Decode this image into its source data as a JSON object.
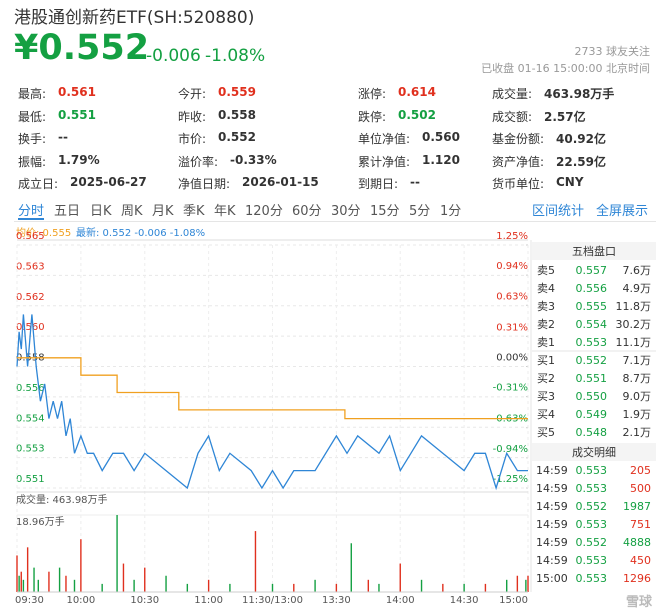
{
  "header": {
    "title": "港股通创新药ETF(SH:520880)",
    "price": "¥0.552",
    "change": "-0.006",
    "change_pct": "-1.08%",
    "followers": "2733 球友关注",
    "status": "已收盘 01-16 15:00:00 北京时间"
  },
  "stats": [
    [
      {
        "label": "最高:",
        "value": "0.561",
        "color": "#e0301e"
      },
      {
        "label": "今开:",
        "value": "0.559",
        "color": "#e0301e"
      },
      {
        "label": "涨停:",
        "value": "0.614",
        "color": "#e0301e"
      },
      {
        "label": "成交量:",
        "value": "463.98万手"
      }
    ],
    [
      {
        "label": "最低:",
        "value": "0.551",
        "color": "#14a042"
      },
      {
        "label": "昨收:",
        "value": "0.558"
      },
      {
        "label": "跌停:",
        "value": "0.502",
        "color": "#14a042"
      },
      {
        "label": "成交额:",
        "value": "2.57亿"
      }
    ],
    [
      {
        "label": "换手:",
        "value": "--"
      },
      {
        "label": "市价:",
        "value": "0.552"
      },
      {
        "label": "单位净值:",
        "value": "0.560"
      },
      {
        "label": "基金份额:",
        "value": "40.92亿"
      }
    ],
    [
      {
        "label": "振幅:",
        "value": "1.79%"
      },
      {
        "label": "溢价率:",
        "value": "-0.33%"
      },
      {
        "label": "累计净值:",
        "value": "1.120"
      },
      {
        "label": "资产净值:",
        "value": "22.59亿"
      }
    ],
    [
      {
        "label": "成立日:",
        "value": "2025-06-27"
      },
      {
        "label": "净值日期:",
        "value": "2026-01-15"
      },
      {
        "label": "到期日:",
        "value": "--"
      },
      {
        "label": "货币单位:",
        "value": "CNY"
      }
    ]
  ],
  "tabs": [
    "分时",
    "五日",
    "日K",
    "周K",
    "月K",
    "季K",
    "年K",
    "120分",
    "60分",
    "30分",
    "15分",
    "5分",
    "1分"
  ],
  "tab_actions": [
    "区间统计",
    "全屏展示"
  ],
  "legend": {
    "avg": "均价: 0.555",
    "latest": "最新: 0.552 -0.006 -1.08%"
  },
  "chart_data": {
    "type": "line",
    "xlim": [
      0,
      240
    ],
    "xticks": [
      {
        "value": 0,
        "label": "09:30"
      },
      {
        "value": 30,
        "label": "10:00"
      },
      {
        "value": 60,
        "label": "10:30"
      },
      {
        "value": 90,
        "label": "11:00"
      },
      {
        "value": 120,
        "label": "11:30/13:00"
      },
      {
        "value": 150,
        "label": "13:30"
      },
      {
        "value": 180,
        "label": "14:00"
      },
      {
        "value": 210,
        "label": "14:30"
      },
      {
        "value": 240,
        "label": "15:00"
      }
    ],
    "ylim": [
      0.551,
      0.565
    ],
    "yticks": [
      {
        "value": 0.565,
        "label": "0.565"
      },
      {
        "value": 0.56325,
        "label": "0.563"
      },
      {
        "value": 0.5615,
        "label": "0.562"
      },
      {
        "value": 0.55975,
        "label": "0.560"
      },
      {
        "value": 0.558,
        "label": "0.558"
      },
      {
        "value": 0.55625,
        "label": "0.556"
      },
      {
        "value": 0.5545,
        "label": "0.554"
      },
      {
        "value": 0.55275,
        "label": "0.553"
      },
      {
        "value": 0.551,
        "label": "0.551"
      }
    ],
    "y2lim": [
      -1.25,
      1.25
    ],
    "y2ticks": [
      {
        "value": 1.25,
        "label": "1.25%"
      },
      {
        "value": 0.94,
        "label": "0.94%"
      },
      {
        "value": 0.63,
        "label": "0.63%"
      },
      {
        "value": 0.31,
        "label": "0.31%"
      },
      {
        "value": 0,
        "label": "0.00%"
      },
      {
        "value": -0.31,
        "label": "-0.31%"
      },
      {
        "value": -0.63,
        "label": "-0.63%"
      },
      {
        "value": -0.94,
        "label": "-0.94%"
      },
      {
        "value": -1.25,
        "label": "-1.25%"
      }
    ],
    "y2colors": [
      "#e0301e",
      "#e0301e",
      "#e0301e",
      "#e0301e",
      "#333333",
      "#14a042",
      "#14a042",
      "#14a042",
      "#14a042"
    ],
    "grid": true,
    "series": [
      {
        "color": "#2f86d6",
        "x": [
          0,
          1,
          2,
          3,
          5,
          7,
          9,
          11,
          13,
          15,
          17,
          19,
          21,
          23,
          25,
          27,
          30,
          33,
          36,
          40,
          45,
          50,
          55,
          60,
          70,
          80,
          85,
          90,
          95,
          100,
          110,
          115,
          120,
          125,
          130,
          140,
          150,
          155,
          160,
          170,
          175,
          180,
          185,
          190,
          200,
          210,
          215,
          220,
          225,
          230,
          235,
          240
        ],
        "values": [
          0.558,
          0.56,
          0.559,
          0.561,
          0.558,
          0.561,
          0.558,
          0.556,
          0.557,
          0.555,
          0.556,
          0.555,
          0.556,
          0.554,
          0.555,
          0.553,
          0.554,
          0.553,
          0.553,
          0.552,
          0.553,
          0.553,
          0.552,
          0.553,
          0.552,
          0.551,
          0.553,
          0.554,
          0.552,
          0.553,
          0.552,
          0.551,
          0.552,
          0.551,
          0.552,
          0.552,
          0.554,
          0.553,
          0.554,
          0.553,
          0.554,
          0.552,
          0.553,
          0.554,
          0.553,
          0.552,
          0.553,
          0.553,
          0.551,
          0.553,
          0.552,
          0.552
        ]
      },
      {
        "color": "#f0a020",
        "x": [
          0,
          30,
          30,
          47,
          47,
          76,
          76,
          154,
          154,
          240
        ],
        "values": [
          0.5585,
          0.5585,
          0.5575,
          0.5575,
          0.5565,
          0.5565,
          0.5555,
          0.5555,
          0.555,
          0.555
        ]
      }
    ],
    "volume": {
      "title": "成交量: 463.98万手",
      "vlim": [
        0,
        18.96
      ],
      "vticks": [
        {
          "value": 18.96,
          "label": "18.96万手"
        }
      ],
      "x": [
        0,
        1,
        2,
        3,
        5,
        8,
        10,
        15,
        20,
        23,
        27,
        30,
        40,
        47,
        50,
        55,
        60,
        70,
        80,
        90,
        100,
        112,
        120,
        130,
        140,
        150,
        157,
        165,
        170,
        180,
        190,
        200,
        210,
        220,
        230,
        235,
        239,
        240
      ],
      "values": [
        9,
        4,
        5,
        3,
        11,
        6,
        3,
        5,
        6,
        4,
        3,
        13,
        2,
        18.96,
        7,
        3,
        6,
        4,
        2,
        3,
        2,
        15,
        2,
        2,
        3,
        2,
        12,
        3,
        2,
        7,
        3,
        2,
        2,
        2,
        3,
        4,
        3,
        4
      ],
      "colors": [
        "#e0301e",
        "#14a042",
        "#e0301e",
        "#14a042",
        "#e0301e",
        "#14a042",
        "#14a042",
        "#e0301e",
        "#14a042",
        "#e0301e",
        "#14a042",
        "#e0301e",
        "#14a042",
        "#14a042",
        "#e0301e",
        "#14a042",
        "#e0301e",
        "#14a042",
        "#14a042",
        "#e0301e",
        "#14a042",
        "#e0301e",
        "#14a042",
        "#e0301e",
        "#14a042",
        "#e0301e",
        "#14a042",
        "#e0301e",
        "#14a042",
        "#e0301e",
        "#14a042",
        "#e0301e",
        "#14a042",
        "#e0301e",
        "#14a042",
        "#e0301e",
        "#14a042",
        "#e0301e"
      ]
    }
  },
  "order_book": {
    "title": "五档盘口",
    "rows": [
      [
        "卖5",
        "0.557",
        "7.6万"
      ],
      [
        "卖4",
        "0.556",
        "4.9万"
      ],
      [
        "卖3",
        "0.555",
        "11.8万"
      ],
      [
        "卖2",
        "0.554",
        "30.2万"
      ],
      [
        "卖1",
        "0.553",
        "11.1万"
      ],
      [
        "买1",
        "0.552",
        "7.1万"
      ],
      [
        "买2",
        "0.551",
        "8.7万"
      ],
      [
        "买3",
        "0.550",
        "9.0万"
      ],
      [
        "买4",
        "0.549",
        "1.9万"
      ],
      [
        "买5",
        "0.548",
        "2.1万"
      ]
    ]
  },
  "trades": {
    "title": "成交明细",
    "rows": [
      [
        "14:59",
        "0.553",
        "205"
      ],
      [
        "14:59",
        "0.553",
        "500"
      ],
      [
        "14:59",
        "0.552",
        "1987"
      ],
      [
        "14:59",
        "0.553",
        "751"
      ],
      [
        "14:59",
        "0.552",
        "4888"
      ],
      [
        "14:59",
        "0.553",
        "450"
      ],
      [
        "15:00",
        "0.553",
        "1296"
      ]
    ],
    "colors": [
      "#e0301e",
      "#e0301e",
      "#14a042",
      "#e0301e",
      "#14a042",
      "#e0301e",
      "#e0301e"
    ]
  },
  "watermark": "雪球"
}
